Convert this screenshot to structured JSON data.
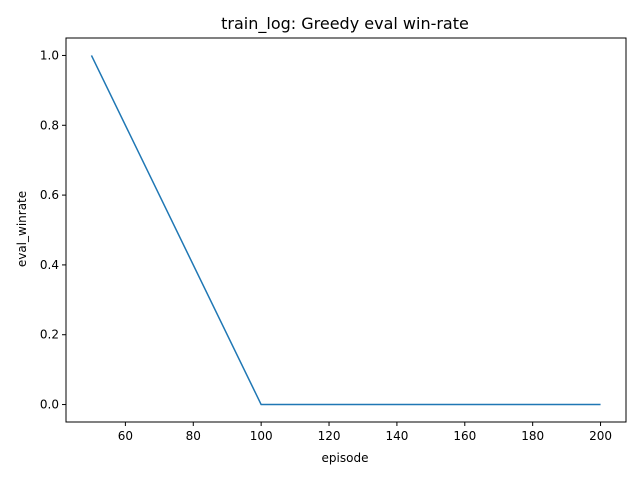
{
  "chart_data": {
    "type": "line",
    "title": "train_log: Greedy eval win-rate",
    "xlabel": "episode",
    "ylabel": "eval_winrate",
    "xlim": [
      42.5,
      207.5
    ],
    "ylim": [
      -0.05,
      1.05
    ],
    "x_ticks": [
      60,
      80,
      100,
      120,
      140,
      160,
      180,
      200
    ],
    "y_ticks": [
      0.0,
      0.2,
      0.4,
      0.6,
      0.8,
      1.0
    ],
    "x_tick_labels": [
      "60",
      "80",
      "100",
      "120",
      "140",
      "160",
      "180",
      "200"
    ],
    "y_tick_labels": [
      "0.0",
      "0.2",
      "0.4",
      "0.6",
      "0.8",
      "1.0"
    ],
    "grid": false,
    "series": [
      {
        "color": "#1f77b4",
        "x": [
          50,
          100,
          150,
          200
        ],
        "y": [
          1.0,
          0.0,
          0.0,
          0.0
        ]
      }
    ]
  }
}
